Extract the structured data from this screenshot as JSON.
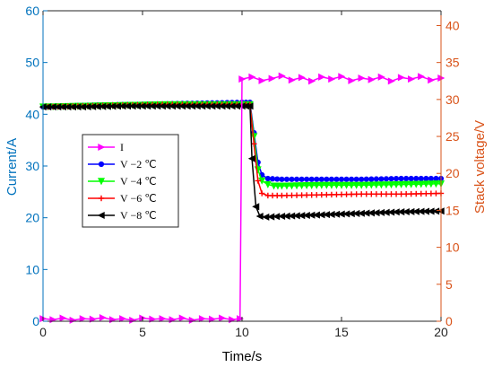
{
  "chart_data": {
    "type": "line",
    "xlabel": "Time/s",
    "ylabel_left": "Current/A",
    "ylabel_right": "Stack voltage/V",
    "xlim": [
      0,
      20
    ],
    "ylim_left": [
      0,
      60
    ],
    "ylim_right": [
      0,
      42
    ],
    "xticks": [
      "0",
      "5",
      "10",
      "15",
      "20"
    ],
    "yticks_left": [
      "0",
      "10",
      "20",
      "30",
      "40",
      "50",
      "60"
    ],
    "yticks_right": [
      "0",
      "5",
      "10",
      "15",
      "20",
      "25",
      "30",
      "35",
      "40"
    ],
    "grid": false,
    "legend_position": "middle-left",
    "colors": {
      "left_axis": "#0072BD",
      "right_axis": "#D95319"
    },
    "series": [
      {
        "name": "I",
        "axis": "left",
        "color": "#FF00FF",
        "marker": "triangle-right",
        "x": [
          0,
          0.5,
          1,
          1.5,
          2,
          2.5,
          3,
          3.5,
          4,
          4.5,
          5,
          5.5,
          6,
          6.5,
          7,
          7.5,
          8,
          8.5,
          9,
          9.5,
          9.9,
          10.0,
          10.5,
          11,
          11.5,
          12,
          12.5,
          13,
          13.5,
          14,
          14.5,
          15,
          15.5,
          16,
          16.5,
          17,
          17.5,
          18,
          18.5,
          19,
          19.5,
          20
        ],
        "y": [
          0.5,
          0.3,
          0.6,
          0.2,
          0.5,
          0.4,
          0.7,
          0.3,
          0.5,
          0.2,
          0.6,
          0.4,
          0.5,
          0.3,
          0.6,
          0.2,
          0.5,
          0.4,
          0.6,
          0.3,
          0.5,
          46.8,
          47.2,
          46.5,
          46.9,
          47.4,
          46.6,
          47.1,
          46.4,
          47.2,
          46.8,
          47.3,
          46.5,
          47.0,
          46.7,
          47.2,
          46.4,
          47.1,
          46.8,
          47.3,
          46.6,
          47.0
        ]
      },
      {
        "name": "V −2 ℃",
        "axis": "right",
        "color": "#0000FF",
        "marker": "dot",
        "x": [
          0,
          2,
          4,
          6,
          8,
          10,
          10.4,
          10.6,
          10.8,
          11.0,
          11.3,
          12,
          14,
          16,
          18,
          20
        ],
        "y": [
          29.0,
          29.2,
          29.3,
          29.4,
          29.5,
          29.6,
          29.6,
          25.5,
          21.5,
          19.8,
          19.3,
          19.2,
          19.2,
          19.2,
          19.3,
          19.3
        ]
      },
      {
        "name": "V −4 ℃",
        "axis": "right",
        "color": "#00FF00",
        "marker": "triangle-down",
        "x": [
          0,
          2,
          4,
          6,
          8,
          10,
          10.4,
          10.6,
          10.8,
          11.0,
          11.3,
          11.6,
          12,
          14,
          16,
          18,
          20
        ],
        "y": [
          29.0,
          29.1,
          29.2,
          29.3,
          29.3,
          29.3,
          29.3,
          25.0,
          20.5,
          19.0,
          18.5,
          18.3,
          18.3,
          18.4,
          18.4,
          18.5,
          18.6
        ]
      },
      {
        "name": "V −6 ℃",
        "axis": "right",
        "color": "#FF0000",
        "marker": "plus",
        "x": [
          0,
          2,
          4,
          6,
          8,
          10,
          10.4,
          10.6,
          10.8,
          11.0,
          11.3,
          12,
          14,
          16,
          18,
          20
        ],
        "y": [
          29.0,
          29.1,
          29.2,
          29.3,
          29.3,
          29.3,
          29.3,
          24.0,
          19.0,
          17.3,
          17.0,
          17.0,
          17.1,
          17.2,
          17.2,
          17.3
        ]
      },
      {
        "name": "V −8 ℃",
        "axis": "right",
        "color": "#000000",
        "marker": "triangle-left",
        "x": [
          0,
          2,
          4,
          6,
          8,
          10,
          10.4,
          10.5,
          10.7,
          10.9,
          11.2,
          12,
          14,
          16,
          18,
          20
        ],
        "y": [
          29.0,
          29.0,
          29.1,
          29.1,
          29.1,
          29.1,
          29.1,
          22.0,
          15.5,
          14.2,
          14.1,
          14.2,
          14.4,
          14.6,
          14.8,
          14.9
        ]
      }
    ]
  }
}
